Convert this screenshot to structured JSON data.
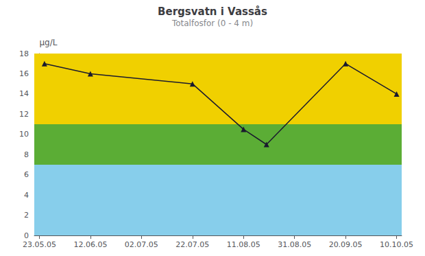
{
  "chart_data": {
    "type": "line",
    "title": "Bergsvatn i Vassås",
    "subtitle": "Totalfosfor (0 - 4 m)",
    "ylabel": "μg/L",
    "x": [
      2,
      20,
      60,
      80,
      89,
      120,
      140
    ],
    "values": [
      17,
      16,
      15,
      10.5,
      9,
      17,
      14
    ],
    "color": "#1a1a2e",
    "marker": "triangle",
    "xlim": [
      -2,
      142
    ],
    "xticks": [
      {
        "value": 0,
        "label": "23.05.05"
      },
      {
        "value": 20,
        "label": "12.06.05"
      },
      {
        "value": 40,
        "label": "02.07.05"
      },
      {
        "value": 60,
        "label": "22.07.05"
      },
      {
        "value": 80,
        "label": "11.08.05"
      },
      {
        "value": 100,
        "label": "31.08.05"
      },
      {
        "value": 120,
        "label": "20.09.05"
      },
      {
        "value": 140,
        "label": "10.10.05"
      }
    ],
    "ylim": [
      0,
      18
    ],
    "yticks": [
      0,
      2,
      4,
      6,
      8,
      10,
      12,
      14,
      16,
      18
    ],
    "bands": [
      {
        "from": 0,
        "to": 7,
        "color": "#87CEEB"
      },
      {
        "from": 7,
        "to": 11,
        "color": "#5BAD35"
      },
      {
        "from": 11,
        "to": 18,
        "color": "#F0D000"
      }
    ],
    "grid": false
  }
}
